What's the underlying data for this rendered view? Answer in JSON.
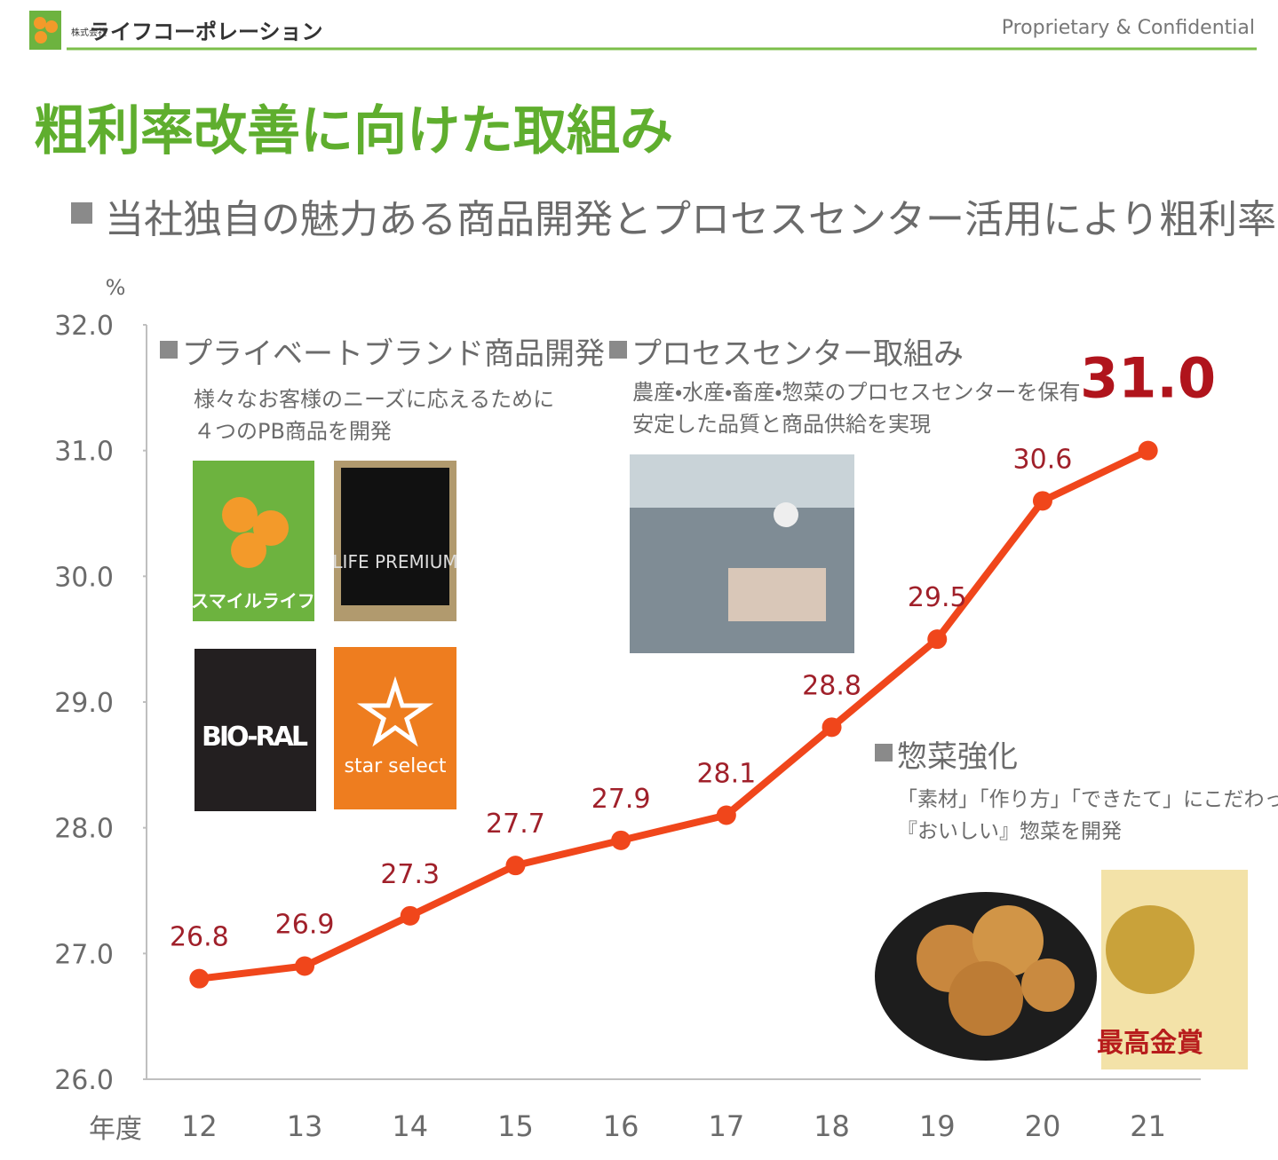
{
  "header": {
    "company_prefix": "株式会社",
    "company": "ライフコーポレーション",
    "confidential": "Proprietary & Confidential"
  },
  "title": "粗利率改善に向けた取組み",
  "subtitle": "当社独自の魅力ある商品開発とプロセスセンター活用により粗利率向上",
  "panels": [
    {
      "heading": "プライベートブランド商品開発",
      "lines": [
        "様々なお客様のニーズに応えるために",
        "４つのPB商品を開発"
      ],
      "brands": [
        "スマイルライフ",
        "LIFE PREMIUM",
        "BIO-RAL",
        "star select"
      ]
    },
    {
      "heading": "プロセスセンター取組み",
      "lines": [
        "農産・水産・畜産・惣菜のプロセスセンターを保有",
        "安定した品質と商品供給を実現"
      ]
    },
    {
      "heading": "惣菜強化",
      "lines": [
        "「素材」「作り方」「できたて」にこだわって",
        "『おいしい』惣菜を開発"
      ],
      "award": "最高金賞"
    }
  ],
  "chart_data": {
    "type": "line",
    "y_unit": "%",
    "x_label": "年度",
    "categories": [
      "12",
      "13",
      "14",
      "15",
      "16",
      "17",
      "18",
      "19",
      "20",
      "21"
    ],
    "values": [
      26.8,
      26.9,
      27.3,
      27.7,
      27.9,
      28.1,
      28.8,
      29.5,
      30.6,
      31.0
    ],
    "value_labels": [
      "26.8",
      "26.9",
      "27.3",
      "27.7",
      "27.9",
      "28.1",
      "28.8",
      "29.5",
      "30.6",
      "31.0"
    ],
    "color": "#f0461b",
    "ylim": [
      26,
      32
    ],
    "yticks": [
      {
        "value": 26,
        "label": "26.0"
      },
      {
        "value": 27,
        "label": "27.0"
      },
      {
        "value": 28,
        "label": "28.0"
      },
      {
        "value": 29,
        "label": "29.0"
      },
      {
        "value": 30,
        "label": "30.0"
      },
      {
        "value": 31,
        "label": "31.0"
      },
      {
        "value": 32,
        "label": "32.0"
      }
    ],
    "grid": false
  }
}
